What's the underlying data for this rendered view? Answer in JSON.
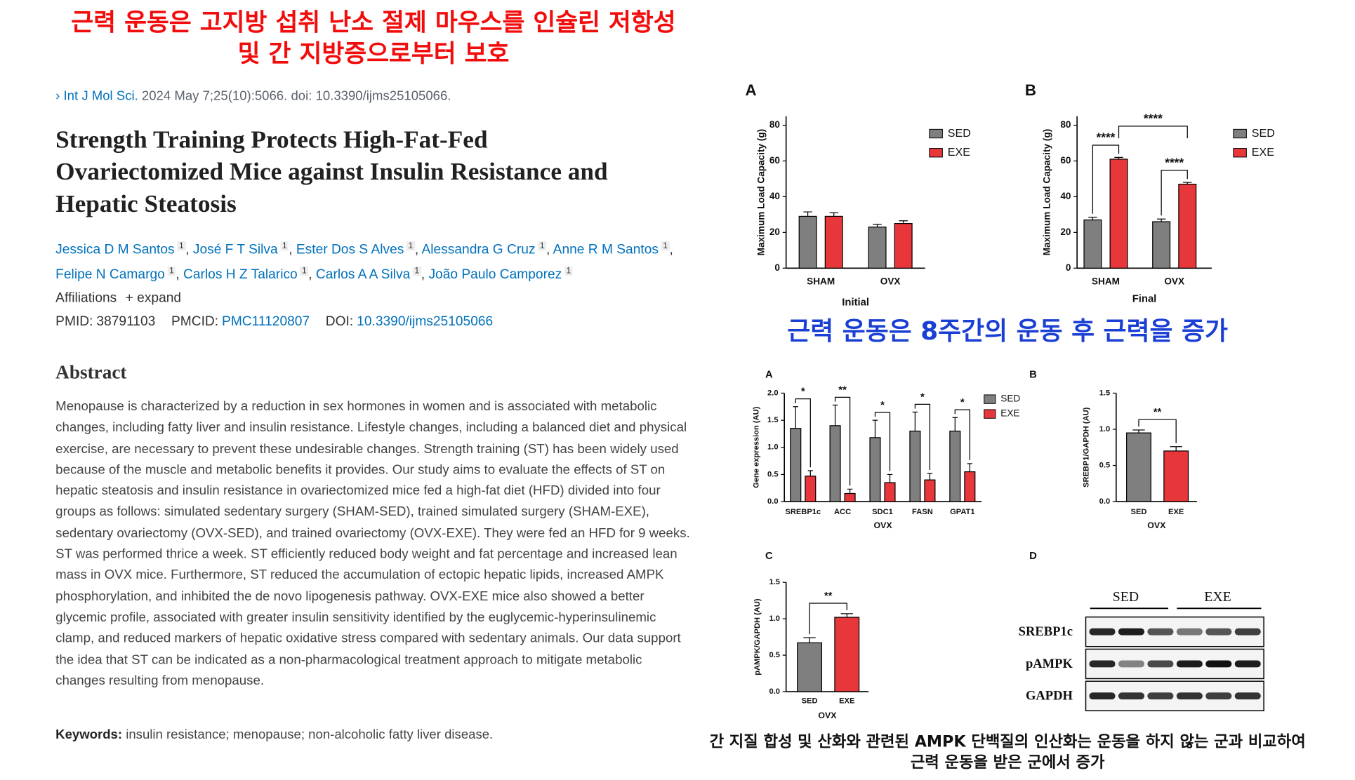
{
  "header": {
    "title_lines": [
      "근력 운동은 고지방 섭취 난소 절제 마우스를 인슐린 저항성",
      "및 간 지방증으로부터 보호"
    ]
  },
  "article": {
    "journal": "Int J Mol Sci.",
    "citation": "2024 May 7;25(10):5066. doi: 10.3390/ijms25105066.",
    "title_lines": [
      "Strength Training Protects High-Fat-Fed",
      "Ovariectomized Mice against Insulin Resistance and",
      "Hepatic Steatosis"
    ],
    "authors": [
      {
        "name": "Jessica D M Santos",
        "affil": "1"
      },
      {
        "name": "José F T Silva",
        "affil": "1"
      },
      {
        "name": "Ester Dos S Alves",
        "affil": "1"
      },
      {
        "name": "Alessandra G Cruz",
        "affil": "1"
      },
      {
        "name": "Anne R M Santos",
        "affil": "1"
      },
      {
        "name": "Felipe N Camargo",
        "affil": "1"
      },
      {
        "name": "Carlos H Z Talarico",
        "affil": "1"
      },
      {
        "name": "Carlos A A Silva",
        "affil": "1"
      },
      {
        "name": "João Paulo Camporez",
        "affil": "1"
      }
    ],
    "affiliations": "Affiliations",
    "expand": "expand",
    "pmid_label": "PMID:",
    "pmid": "38791103",
    "pmcid_label": "PMCID:",
    "pmcid": "PMC11120807",
    "doi_label": "DOI:",
    "doi": "10.3390/ijms25105066",
    "abstract_heading": "Abstract",
    "abstract": "Menopause is characterized by a reduction in sex hormones in women and is associated with metabolic changes, including fatty liver and insulin resistance. Lifestyle changes, including a balanced diet and physical exercise, are necessary to prevent these undesirable changes. Strength training (ST) has been widely used because of the muscle and metabolic benefits it provides. Our study aims to evaluate the effects of ST on hepatic steatosis and insulin resistance in ovariectomized mice fed a high-fat diet (HFD) divided into four groups as follows: simulated sedentary surgery (SHAM-SED), trained simulated surgery (SHAM-EXE), sedentary ovariectomy (OVX-SED), and trained ovariectomy (OVX-EXE). They were fed an HFD for 9 weeks. ST was performed thrice a week. ST efficiently reduced body weight and fat percentage and increased lean mass in OVX mice. Furthermore, ST reduced the accumulation of ectopic hepatic lipids, increased AMPK phosphorylation, and inhibited the de novo lipogenesis pathway. OVX-EXE mice also showed a better glycemic profile, associated with greater insulin sensitivity identified by the euglycemic-hyperinsulinemic clamp, and reduced markers of hepatic oxidative stress compared with sedentary animals. Our data support the idea that ST can be indicated as a non-pharmacological treatment approach to mitigate metabolic changes resulting from menopause.",
    "keywords_label": "Keywords:",
    "keywords": "insulin resistance; menopause; non-alcoholic fatty liver disease."
  },
  "chart_data": [
    {
      "type": "bar",
      "panel": "A",
      "y_label": "Maximum Load Capacity (g)",
      "x_label": "Initial",
      "categories": [
        "SHAM",
        "OVX"
      ],
      "series": [
        {
          "name": "SED",
          "color": "#7f7f7f",
          "values": [
            29,
            23
          ],
          "errors": [
            2.5,
            1.5
          ]
        },
        {
          "name": "EXE",
          "color": "#e8373b",
          "values": [
            29,
            25
          ],
          "errors": [
            2,
            1.5
          ]
        }
      ],
      "ylim": [
        0,
        85
      ],
      "yticks": [
        0,
        20,
        40,
        60,
        80
      ],
      "significance": []
    },
    {
      "type": "bar",
      "panel": "B",
      "y_label": "Maximum Load Capacity (g)",
      "x_label": "Final",
      "categories": [
        "SHAM",
        "OVX"
      ],
      "series": [
        {
          "name": "SED",
          "color": "#7f7f7f",
          "values": [
            27,
            26
          ],
          "errors": [
            1.5,
            1.5
          ]
        },
        {
          "name": "EXE",
          "color": "#e8373b",
          "values": [
            61,
            47
          ],
          "errors": [
            1,
            1
          ]
        }
      ],
      "ylim": [
        0,
        85
      ],
      "yticks": [
        0,
        20,
        40,
        60,
        80
      ],
      "significance": [
        "****",
        "****",
        "****"
      ]
    },
    {
      "type": "bar",
      "panel": "A",
      "y_label": "Gene expression (AU)",
      "x_label": "OVX",
      "categories": [
        "SREBP1c",
        "ACC",
        "SDC1",
        "FASN",
        "GPAT1"
      ],
      "series": [
        {
          "name": "SED",
          "color": "#7f7f7f",
          "values": [
            1.35,
            1.4,
            1.18,
            1.3,
            1.3
          ],
          "errors": [
            0.4,
            0.38,
            0.32,
            0.35,
            0.25
          ]
        },
        {
          "name": "EXE",
          "color": "#e8373b",
          "values": [
            0.47,
            0.15,
            0.35,
            0.4,
            0.55
          ],
          "errors": [
            0.1,
            0.08,
            0.15,
            0.12,
            0.15
          ]
        }
      ],
      "ylim": [
        0,
        2
      ],
      "yticks": [
        {
          "value": 0,
          "label": "0.0"
        },
        {
          "value": 0.5,
          "label": "0.5"
        },
        {
          "value": 1,
          "label": "1.0"
        },
        {
          "value": 1.5,
          "label": "1.5"
        },
        {
          "value": 2,
          "label": "2.0"
        }
      ],
      "significance": [
        "*",
        "**",
        "*",
        "*",
        "*"
      ]
    },
    {
      "type": "bar",
      "panel": "B",
      "y_label": "SREBP1/GAPDH (AU)",
      "x_label": "OVX",
      "categories": [
        "SED",
        "EXE"
      ],
      "values": [
        0.95,
        0.7
      ],
      "errors": [
        0.04,
        0.06
      ],
      "colors": [
        "#7f7f7f",
        "#e8373b"
      ],
      "ylim": [
        0,
        1.5
      ],
      "yticks": [
        {
          "value": 0,
          "label": "0.0"
        },
        {
          "value": 0.5,
          "label": "0.5"
        },
        {
          "value": 1,
          "label": "1.0"
        },
        {
          "value": 1.5,
          "label": "1.5"
        }
      ],
      "significance": [
        "**"
      ]
    },
    {
      "type": "bar",
      "panel": "C",
      "y_label": "pAMPK/GAPDH (AU)",
      "x_label": "OVX",
      "categories": [
        "SED",
        "EXE"
      ],
      "values": [
        0.67,
        1.02
      ],
      "errors": [
        0.07,
        0.05
      ],
      "colors": [
        "#7f7f7f",
        "#e8373b"
      ],
      "ylim": [
        0,
        1.5
      ],
      "yticks": [
        {
          "value": 0,
          "label": "0.0"
        },
        {
          "value": 0.5,
          "label": "0.5"
        },
        {
          "value": 1,
          "label": "1.0"
        },
        {
          "value": 1.5,
          "label": "1.5"
        }
      ],
      "significance": [
        "**"
      ]
    }
  ],
  "blot": {
    "panel": "D",
    "groups": [
      "SED",
      "EXE"
    ],
    "rows": [
      "SREBP1c",
      "pAMPK",
      "GAPDH"
    ]
  },
  "captions": {
    "strength": "근력 운동은 8주간의 운동 후 근력을 증가",
    "ampk_lines": [
      "간 지질 합성 및 산화와 관련된 AMPK 단백질의 인산화는 운동을 하지 않는 군과 비교하여",
      "근력 운동을 받은 군에서 증가"
    ]
  }
}
